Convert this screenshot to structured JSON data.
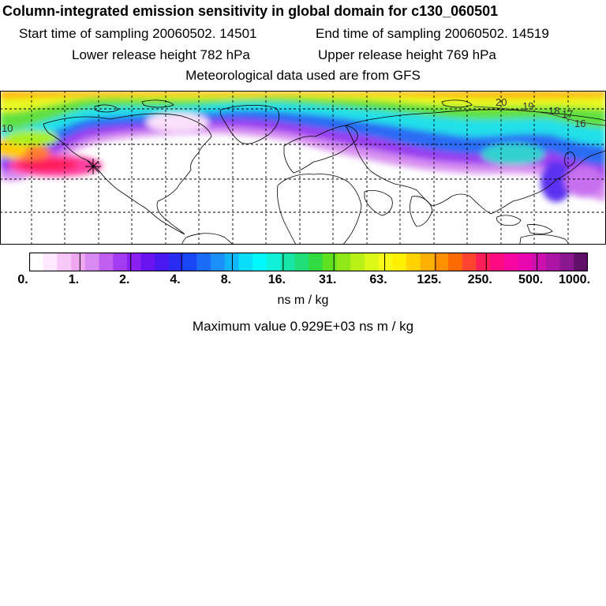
{
  "title": "Column-integrated emission sensitivity in global domain for c130_060501",
  "sampling": {
    "start": "Start time of sampling 20060502. 14501",
    "end": "End time of sampling 20060502. 14519"
  },
  "release": {
    "lower": "Lower release height  782 hPa",
    "upper": "Upper release height  769 hPa"
  },
  "met_source": "Meteorological data used are from GFS",
  "map_labels": [
    "20",
    "19",
    "18",
    "17",
    "16",
    "10"
  ],
  "legend": {
    "ticks": [
      "0.",
      "1.",
      "2.",
      "4.",
      "8.",
      "16.",
      "31.",
      "63.",
      "125.",
      "250.",
      "500.",
      "1000."
    ],
    "units": "ns m / kg",
    "colors": [
      "#ffffff",
      "#fde8fd",
      "#f7c8f7",
      "#eea7f0",
      "#d98af2",
      "#c060f0",
      "#a33cf0",
      "#8a20f0",
      "#6a14f0",
      "#4a18f0",
      "#2a2cf2",
      "#1848f4",
      "#1a6cf6",
      "#1a90f8",
      "#12b4fa",
      "#0adcfc",
      "#00f8ff",
      "#10f0d8",
      "#18e6a8",
      "#20de78",
      "#30da40",
      "#60e020",
      "#90e818",
      "#b8f018",
      "#dcf818",
      "#f8fa18",
      "#fff000",
      "#ffd200",
      "#ffb000",
      "#ff8e00",
      "#ff6a00",
      "#ff4430",
      "#ff1e58",
      "#ff0a80",
      "#f806a0",
      "#e808b0",
      "#cc10b0",
      "#ac14a4",
      "#8a1690",
      "#601068"
    ]
  },
  "maximum": "Maximum value  0.929E+03 ns m / kg"
}
